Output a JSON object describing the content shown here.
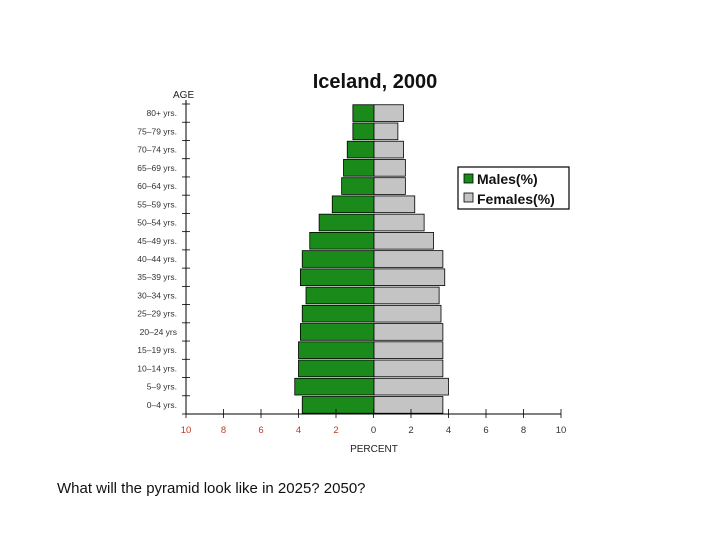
{
  "chart_data": {
    "type": "bar",
    "title": "Iceland, 2000",
    "ylabel": "AGE",
    "xlabel": "PERCENT",
    "xlim": [
      -10,
      10
    ],
    "x_ticks": [
      -10,
      -8,
      -6,
      -4,
      -2,
      0,
      2,
      4,
      6,
      8,
      10
    ],
    "x_tick_labels": [
      "10",
      "8",
      "6",
      "4",
      "2",
      "0",
      "2",
      "4",
      "6",
      "8",
      "10"
    ],
    "legend_position": "right",
    "categories": [
      "0–4 yrs.",
      "5–9 yrs.",
      "10–14 yrs.",
      "15–19 yrs.",
      "20–24 yrs",
      "25–29 yrs.",
      "30–34 yrs.",
      "35–39 yrs.",
      "40–44 yrs.",
      "45–49 yrs.",
      "50–54 yrs.",
      "55–59 yrs.",
      "60–64 yrs.",
      "65–69 yrs.",
      "70–74 yrs.",
      "75–79 yrs.",
      "80+ yrs."
    ],
    "series": [
      {
        "name": "Males(%)",
        "color": "#1a8a1a",
        "values": [
          3.8,
          4.2,
          4.0,
          4.0,
          3.9,
          3.8,
          3.6,
          3.9,
          3.8,
          3.4,
          2.9,
          2.2,
          1.7,
          1.6,
          1.4,
          1.1,
          1.1
        ]
      },
      {
        "name": "Females(%)",
        "color": "#c4c4c4",
        "values": [
          3.7,
          4.0,
          3.7,
          3.7,
          3.7,
          3.6,
          3.5,
          3.8,
          3.7,
          3.2,
          2.7,
          2.2,
          1.7,
          1.7,
          1.6,
          1.3,
          1.6
        ]
      }
    ]
  },
  "caption": "What will the pyramid look like in 2025? 2050?"
}
